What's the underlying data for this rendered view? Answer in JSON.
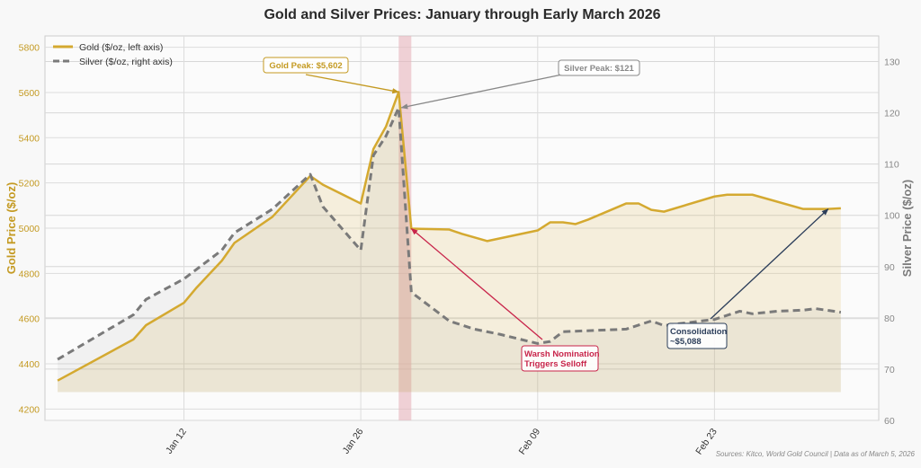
{
  "chart_data": {
    "type": "line",
    "title": "Gold and Silver Prices: January through Early March 2026",
    "ylabel_left": "Gold Price ($/oz)",
    "ylabel_right": "Silver Price ($/oz)",
    "ylim_left": [
      4150,
      5850
    ],
    "ylim_right": [
      60,
      135
    ],
    "xlim": [
      "2026-01-01",
      "2026-03-08"
    ],
    "grid": true,
    "legend_position": "top-left",
    "x_ticks": [
      {
        "date": "2026-01-12",
        "label": "Jan 12"
      },
      {
        "date": "2026-01-26",
        "label": "Jan 26"
      },
      {
        "date": "2026-02-09",
        "label": "Feb 09"
      },
      {
        "date": "2026-02-23",
        "label": "Feb 23"
      }
    ],
    "y_ticks_left": [
      "4200",
      "4400",
      "4600",
      "4800",
      "5000",
      "5200",
      "5400",
      "5600",
      "5800"
    ],
    "y_ticks_right": [
      "60",
      "70",
      "80",
      "90",
      "100",
      "110",
      "120",
      "130"
    ],
    "colors": {
      "gold": "#d4a930",
      "silver": "#7a7a7a",
      "selloff": "#c8244a",
      "consolidation": "#2c3e5a",
      "highlight_band": "#e8b4bc"
    },
    "highlight_band": [
      "2026-01-29",
      "2026-01-30"
    ],
    "series": [
      {
        "name": "Gold ($/oz, left axis)",
        "axis": "left",
        "style": "solid",
        "x": [
          "2026-01-02",
          "2026-01-08",
          "2026-01-09",
          "2026-01-12",
          "2026-01-13",
          "2026-01-15",
          "2026-01-16",
          "2026-01-19",
          "2026-01-22",
          "2026-01-23",
          "2026-01-26",
          "2026-01-27",
          "2026-01-28",
          "2026-01-29",
          "2026-01-30",
          "2026-02-02",
          "2026-02-03",
          "2026-02-05",
          "2026-02-09",
          "2026-02-10",
          "2026-02-11",
          "2026-02-12",
          "2026-02-13",
          "2026-02-16",
          "2026-02-17",
          "2026-02-18",
          "2026-02-19",
          "2026-02-23",
          "2026-02-24",
          "2026-02-26",
          "2026-03-02",
          "2026-03-04",
          "2026-03-05"
        ],
        "values": [
          4326,
          4508,
          4571,
          4670,
          4737,
          4856,
          4935,
          5050,
          5231,
          5192,
          5109,
          5350,
          5450,
          5602,
          4998,
          4994,
          4975,
          4943,
          4990,
          5026,
          5026,
          5018,
          5038,
          5109,
          5109,
          5081,
          5073,
          5140,
          5148,
          5148,
          5085,
          5085,
          5088
        ]
      },
      {
        "name": "Silver ($/oz, right axis)",
        "axis": "right",
        "style": "dashed",
        "x": [
          "2026-01-02",
          "2026-01-08",
          "2026-01-09",
          "2026-01-12",
          "2026-01-15",
          "2026-01-16",
          "2026-01-19",
          "2026-01-22",
          "2026-01-23",
          "2026-01-26",
          "2026-01-27",
          "2026-01-28",
          "2026-01-29",
          "2026-01-30",
          "2026-02-02",
          "2026-02-04",
          "2026-02-06",
          "2026-02-09",
          "2026-02-10",
          "2026-02-11",
          "2026-02-16",
          "2026-02-18",
          "2026-02-19",
          "2026-02-23",
          "2026-02-25",
          "2026-02-26",
          "2026-02-28",
          "2026-03-02",
          "2026-03-03",
          "2026-03-05"
        ],
        "values": [
          71.9,
          80.6,
          83.6,
          87.6,
          93.2,
          96.6,
          101.2,
          108,
          101.7,
          93.2,
          111.7,
          115.5,
          121,
          85,
          79.4,
          77.8,
          76.8,
          75,
          75.4,
          77.3,
          77.8,
          79.4,
          78.5,
          79.7,
          81.3,
          80.8,
          81.3,
          81.5,
          81.8,
          81.1
        ]
      }
    ],
    "annotations": [
      {
        "id": "gold-peak",
        "lines": [
          "Gold Peak: $5,602"
        ],
        "color": "#c49a22",
        "target": {
          "date": "2026-01-29",
          "axis": "left",
          "value": 5602
        }
      },
      {
        "id": "silver-peak",
        "lines": [
          "Silver Peak: $121"
        ],
        "color": "#888888",
        "target": {
          "date": "2026-01-29",
          "axis": "right",
          "value": 121
        }
      },
      {
        "id": "selloff",
        "lines": [
          "Warsh Nomination",
          "Triggers Selloff"
        ],
        "color": "#c8244a",
        "target": {
          "date": "2026-01-30",
          "axis": "left",
          "value": 4998
        }
      },
      {
        "id": "consolidation",
        "lines": [
          "Consolidation",
          "~$5,088"
        ],
        "color": "#2c3e5a",
        "target": {
          "date": "2026-03-04",
          "axis": "left",
          "value": 5085
        }
      }
    ],
    "footnote": "Sources: Kitco, World Gold Council  |  Data as of March 5, 2026"
  }
}
